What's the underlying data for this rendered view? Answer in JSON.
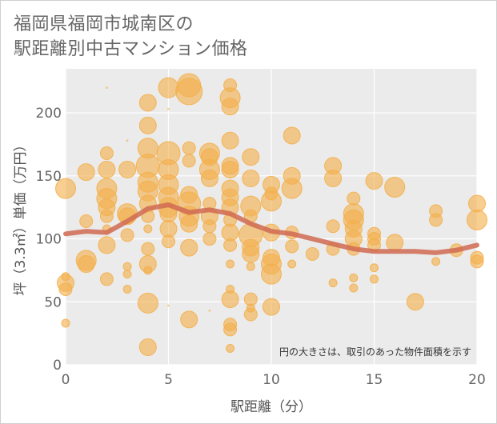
{
  "chart_data": {
    "type": "scatter",
    "title": [
      "福岡県福岡市城南区の",
      "駅距離別中古マンション価格"
    ],
    "xlabel": "駅距離（分）",
    "ylabel": "坪（3.3㎡）単価（万円）",
    "xlim": [
      0,
      20
    ],
    "ylim": [
      0,
      235
    ],
    "xticks": [
      "0",
      "5",
      "10",
      "15",
      "20"
    ],
    "yticks": [
      "0",
      "50",
      "100",
      "150",
      "200"
    ],
    "grid": true,
    "annotation": "円の大きさは、取引のあった物件面積を示す",
    "colors": {
      "bubble": "#f3b04d",
      "line": "#d06a52",
      "plot_bg": "#ebebeb",
      "grid": "#ffffff"
    },
    "trend": {
      "x": [
        0,
        1,
        2,
        3,
        4,
        5,
        6,
        7,
        8,
        9,
        10,
        11,
        12,
        13,
        14,
        15,
        16,
        17,
        18,
        19,
        20
      ],
      "y": [
        104,
        106,
        105,
        114,
        124,
        127,
        121,
        123,
        120,
        112,
        106,
        104,
        100,
        96,
        92,
        90,
        90,
        90,
        89,
        91,
        95
      ]
    },
    "points": [
      {
        "x": 0,
        "y": 140,
        "s": 5
      },
      {
        "x": 0,
        "y": 65,
        "s": 4
      },
      {
        "x": 0,
        "y": 60,
        "s": 3
      },
      {
        "x": 0,
        "y": 33,
        "s": 2
      },
      {
        "x": 0,
        "y": 70,
        "s": 2
      },
      {
        "x": 1,
        "y": 153,
        "s": 4
      },
      {
        "x": 1,
        "y": 114,
        "s": 3
      },
      {
        "x": 1,
        "y": 83,
        "s": 5
      },
      {
        "x": 1,
        "y": 80,
        "s": 4
      },
      {
        "x": 2,
        "y": 168,
        "s": 3
      },
      {
        "x": 2,
        "y": 155,
        "s": 4
      },
      {
        "x": 2,
        "y": 140,
        "s": 5
      },
      {
        "x": 2,
        "y": 132,
        "s": 5
      },
      {
        "x": 2,
        "y": 125,
        "s": 4
      },
      {
        "x": 2,
        "y": 118,
        "s": 3
      },
      {
        "x": 2,
        "y": 108,
        "s": 2
      },
      {
        "x": 2,
        "y": 95,
        "s": 4
      },
      {
        "x": 2,
        "y": 68,
        "s": 3
      },
      {
        "x": 2,
        "y": 220,
        "s": 1
      },
      {
        "x": 3,
        "y": 155,
        "s": 4
      },
      {
        "x": 3,
        "y": 120,
        "s": 5
      },
      {
        "x": 3,
        "y": 118,
        "s": 4
      },
      {
        "x": 3,
        "y": 103,
        "s": 3
      },
      {
        "x": 3,
        "y": 78,
        "s": 2
      },
      {
        "x": 3,
        "y": 72,
        "s": 2
      },
      {
        "x": 3,
        "y": 60,
        "s": 2
      },
      {
        "x": 3,
        "y": 178,
        "s": 1
      },
      {
        "x": 4,
        "y": 208,
        "s": 4
      },
      {
        "x": 4,
        "y": 190,
        "s": 4
      },
      {
        "x": 4,
        "y": 172,
        "s": 5
      },
      {
        "x": 4,
        "y": 158,
        "s": 6
      },
      {
        "x": 4,
        "y": 145,
        "s": 5
      },
      {
        "x": 4,
        "y": 138,
        "s": 5
      },
      {
        "x": 4,
        "y": 128,
        "s": 4
      },
      {
        "x": 4,
        "y": 118,
        "s": 3
      },
      {
        "x": 4,
        "y": 108,
        "s": 2
      },
      {
        "x": 4,
        "y": 92,
        "s": 3
      },
      {
        "x": 4,
        "y": 80,
        "s": 4
      },
      {
        "x": 4,
        "y": 75,
        "s": 2
      },
      {
        "x": 4,
        "y": 49,
        "s": 5
      },
      {
        "x": 4,
        "y": 14,
        "s": 4
      },
      {
        "x": 5,
        "y": 220,
        "s": 5
      },
      {
        "x": 5,
        "y": 203,
        "s": 1
      },
      {
        "x": 5,
        "y": 168,
        "s": 6
      },
      {
        "x": 5,
        "y": 155,
        "s": 5
      },
      {
        "x": 5,
        "y": 143,
        "s": 5
      },
      {
        "x": 5,
        "y": 133,
        "s": 5
      },
      {
        "x": 5,
        "y": 125,
        "s": 5
      },
      {
        "x": 5,
        "y": 120,
        "s": 4
      },
      {
        "x": 5,
        "y": 108,
        "s": 4
      },
      {
        "x": 5,
        "y": 98,
        "s": 3
      },
      {
        "x": 5,
        "y": 47,
        "s": 1
      },
      {
        "x": 6,
        "y": 222,
        "s": 6
      },
      {
        "x": 6,
        "y": 217,
        "s": 7
      },
      {
        "x": 6,
        "y": 172,
        "s": 3
      },
      {
        "x": 6,
        "y": 162,
        "s": 3
      },
      {
        "x": 6,
        "y": 135,
        "s": 4
      },
      {
        "x": 6,
        "y": 128,
        "s": 6
      },
      {
        "x": 6,
        "y": 118,
        "s": 5
      },
      {
        "x": 6,
        "y": 112,
        "s": 4
      },
      {
        "x": 6,
        "y": 93,
        "s": 4
      },
      {
        "x": 6,
        "y": 36,
        "s": 4
      },
      {
        "x": 7,
        "y": 168,
        "s": 5
      },
      {
        "x": 7,
        "y": 165,
        "s": 4
      },
      {
        "x": 7,
        "y": 155,
        "s": 5
      },
      {
        "x": 7,
        "y": 148,
        "s": 4
      },
      {
        "x": 7,
        "y": 128,
        "s": 3
      },
      {
        "x": 7,
        "y": 118,
        "s": 4
      },
      {
        "x": 7,
        "y": 110,
        "s": 3
      },
      {
        "x": 7,
        "y": 100,
        "s": 3
      },
      {
        "x": 7,
        "y": 43,
        "s": 1
      },
      {
        "x": 8,
        "y": 222,
        "s": 3
      },
      {
        "x": 8,
        "y": 212,
        "s": 5
      },
      {
        "x": 8,
        "y": 205,
        "s": 4
      },
      {
        "x": 8,
        "y": 178,
        "s": 4
      },
      {
        "x": 8,
        "y": 158,
        "s": 4
      },
      {
        "x": 8,
        "y": 155,
        "s": 4
      },
      {
        "x": 8,
        "y": 140,
        "s": 4
      },
      {
        "x": 8,
        "y": 133,
        "s": 4
      },
      {
        "x": 8,
        "y": 125,
        "s": 4
      },
      {
        "x": 8,
        "y": 115,
        "s": 3
      },
      {
        "x": 8,
        "y": 105,
        "s": 4
      },
      {
        "x": 8,
        "y": 95,
        "s": 3
      },
      {
        "x": 8,
        "y": 80,
        "s": 2
      },
      {
        "x": 8,
        "y": 60,
        "s": 2
      },
      {
        "x": 8,
        "y": 52,
        "s": 4
      },
      {
        "x": 8,
        "y": 32,
        "s": 3
      },
      {
        "x": 8,
        "y": 28,
        "s": 3
      },
      {
        "x": 8,
        "y": 13,
        "s": 2
      },
      {
        "x": 9,
        "y": 165,
        "s": 4
      },
      {
        "x": 9,
        "y": 148,
        "s": 4
      },
      {
        "x": 9,
        "y": 126,
        "s": 5
      },
      {
        "x": 9,
        "y": 118,
        "s": 3
      },
      {
        "x": 9,
        "y": 103,
        "s": 6
      },
      {
        "x": 9,
        "y": 93,
        "s": 4
      },
      {
        "x": 9,
        "y": 88,
        "s": 4
      },
      {
        "x": 9,
        "y": 78,
        "s": 2
      },
      {
        "x": 9,
        "y": 52,
        "s": 3
      },
      {
        "x": 9,
        "y": 45,
        "s": 2
      },
      {
        "x": 9,
        "y": 40,
        "s": 3
      },
      {
        "x": 10,
        "y": 143,
        "s": 4
      },
      {
        "x": 10,
        "y": 136,
        "s": 3
      },
      {
        "x": 10,
        "y": 130,
        "s": 5
      },
      {
        "x": 10,
        "y": 105,
        "s": 4
      },
      {
        "x": 10,
        "y": 85,
        "s": 4
      },
      {
        "x": 10,
        "y": 80,
        "s": 5
      },
      {
        "x": 10,
        "y": 72,
        "s": 5
      },
      {
        "x": 10,
        "y": 46,
        "s": 4
      },
      {
        "x": 11,
        "y": 182,
        "s": 4
      },
      {
        "x": 11,
        "y": 150,
        "s": 4
      },
      {
        "x": 11,
        "y": 140,
        "s": 5
      },
      {
        "x": 11,
        "y": 105,
        "s": 3
      },
      {
        "x": 11,
        "y": 94,
        "s": 3
      },
      {
        "x": 11,
        "y": 80,
        "s": 2
      },
      {
        "x": 12,
        "y": 88,
        "s": 3
      },
      {
        "x": 13,
        "y": 158,
        "s": 4
      },
      {
        "x": 13,
        "y": 148,
        "s": 4
      },
      {
        "x": 13,
        "y": 110,
        "s": 3
      },
      {
        "x": 13,
        "y": 92,
        "s": 3
      },
      {
        "x": 13,
        "y": 65,
        "s": 2
      },
      {
        "x": 14,
        "y": 132,
        "s": 3
      },
      {
        "x": 14,
        "y": 120,
        "s": 5
      },
      {
        "x": 14,
        "y": 115,
        "s": 5
      },
      {
        "x": 14,
        "y": 108,
        "s": 4
      },
      {
        "x": 14,
        "y": 100,
        "s": 4
      },
      {
        "x": 14,
        "y": 92,
        "s": 3
      },
      {
        "x": 14,
        "y": 69,
        "s": 2
      },
      {
        "x": 14,
        "y": 61,
        "s": 2
      },
      {
        "x": 15,
        "y": 146,
        "s": 4
      },
      {
        "x": 15,
        "y": 104,
        "s": 3
      },
      {
        "x": 15,
        "y": 100,
        "s": 3
      },
      {
        "x": 15,
        "y": 95,
        "s": 3
      },
      {
        "x": 15,
        "y": 77,
        "s": 2
      },
      {
        "x": 15,
        "y": 68,
        "s": 2
      },
      {
        "x": 16,
        "y": 141,
        "s": 5
      },
      {
        "x": 16,
        "y": 97,
        "s": 4
      },
      {
        "x": 17,
        "y": 50,
        "s": 4
      },
      {
        "x": 18,
        "y": 122,
        "s": 3
      },
      {
        "x": 18,
        "y": 115,
        "s": 3
      },
      {
        "x": 18,
        "y": 82,
        "s": 2
      },
      {
        "x": 19,
        "y": 91,
        "s": 3
      },
      {
        "x": 20,
        "y": 128,
        "s": 4
      },
      {
        "x": 20,
        "y": 115,
        "s": 5
      },
      {
        "x": 20,
        "y": 85,
        "s": 3
      },
      {
        "x": 20,
        "y": 82,
        "s": 3
      }
    ]
  }
}
